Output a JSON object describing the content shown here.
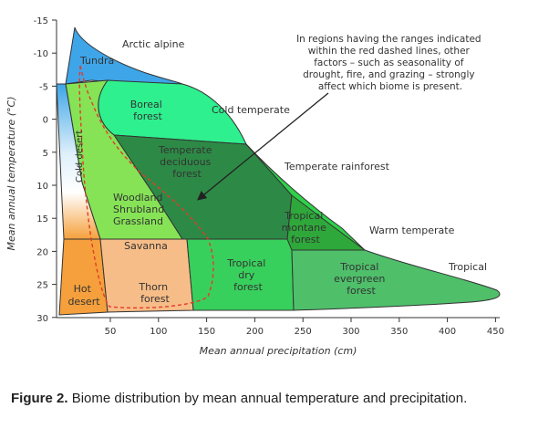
{
  "axes": {
    "y_title": "Mean annual temperature (°C)",
    "x_title": "Mean annual precipitation (cm)",
    "y_ticks": [
      "-15",
      "-10",
      "-5",
      "0",
      "5",
      "10",
      "15",
      "20",
      "25",
      "30"
    ],
    "x_ticks": [
      "50",
      "100",
      "150",
      "200",
      "250",
      "300",
      "350",
      "400",
      "450"
    ]
  },
  "biomes": {
    "arctic_alpine": "Arctic alpine",
    "tundra": "Tundra",
    "boreal_forest": [
      "Boreal",
      "forest"
    ],
    "cold_temperate": "Cold temperate",
    "cold_desert": "Cold desert",
    "temperate_deciduous": [
      "Temperate",
      "deciduous",
      "forest"
    ],
    "temperate_rainforest": "Temperate rainforest",
    "woodland": [
      "Woodland",
      "Shrubland",
      "Grassland"
    ],
    "tropical_montane": [
      "Tropical",
      "montane",
      "forest"
    ],
    "warm_temperate": "Warm temperate",
    "savanna": "Savanna",
    "tropical_dry": [
      "Tropical",
      "dry",
      "forest"
    ],
    "tropical_evergreen": [
      "Tropical",
      "evergreen",
      "forest"
    ],
    "tropical": "Tropical",
    "hot_desert": [
      "Hot",
      "desert"
    ],
    "thorn_forest": [
      "Thorn",
      "forest"
    ]
  },
  "annotation": [
    "In regions having the ranges indicated",
    "within the red dashed lines, other",
    "factors – such as seasonality of",
    "drought, fire, and grazing – strongly",
    "affect which biome is present."
  ],
  "colors": {
    "tundra": "#3ea5e8",
    "boreal": "#2ef08e",
    "deciduous": "#2d8a46",
    "rainforest": "#2fd14a",
    "woodland": "#86e356",
    "savanna": "#a8e86e",
    "tropical_montane": "#2ea83a",
    "dry": "#38d05c",
    "evergreen": "#4fbf6a",
    "desert": "#f5a03c",
    "thorn": "#f7bd88",
    "warm_temperate_zone": "#3fd33c",
    "red_dashed": "#e23b2b"
  },
  "caption": {
    "label": "Figure 2.",
    "text": "Biome distribution by mean annual temperature and precipitation."
  }
}
